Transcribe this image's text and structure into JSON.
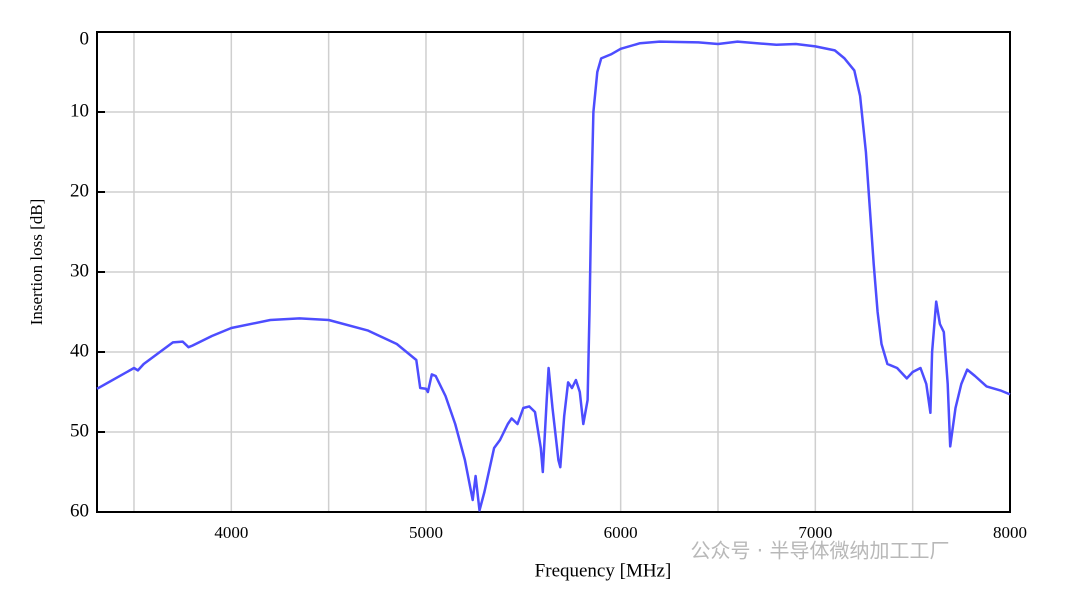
{
  "chart_data": {
    "type": "line",
    "x_label": "Frequency [MHz]",
    "y_label": "Insertion loss [dB]",
    "watermark": "公众号 · 半导体微纳加工工厂",
    "color": "#4d4dff",
    "xlim": [
      3310,
      8000
    ],
    "ylim": [
      0,
      60
    ],
    "invert_y": true,
    "xticks": [
      4000,
      5000,
      6000,
      7000,
      8000
    ],
    "x_minor_grid": [
      3500,
      4500,
      5500,
      6500,
      7500
    ],
    "yticks": [
      0,
      10,
      20,
      30,
      40,
      50,
      60
    ],
    "grid": true,
    "x": [
      3310,
      3500,
      3520,
      3550,
      3700,
      3750,
      3780,
      3800,
      3900,
      4000,
      4200,
      4350,
      4500,
      4700,
      4850,
      4950,
      4970,
      5000,
      5010,
      5030,
      5050,
      5100,
      5150,
      5200,
      5240,
      5255,
      5275,
      5300,
      5350,
      5380,
      5420,
      5440,
      5470,
      5500,
      5530,
      5560,
      5590,
      5600,
      5620,
      5630,
      5650,
      5680,
      5690,
      5710,
      5730,
      5750,
      5770,
      5790,
      5808,
      5830,
      5840,
      5850,
      5860,
      5880,
      5900,
      5950,
      6000,
      6100,
      6200,
      6400,
      6500,
      6600,
      6800,
      6900,
      7000,
      7100,
      7150,
      7200,
      7230,
      7260,
      7280,
      7300,
      7320,
      7340,
      7370,
      7420,
      7470,
      7500,
      7540,
      7570,
      7591,
      7600,
      7621,
      7640,
      7660,
      7680,
      7693,
      7720,
      7750,
      7780,
      7820,
      7880,
      7950,
      8000
    ],
    "values": [
      44.6,
      42.0,
      42.3,
      41.5,
      38.8,
      38.7,
      39.4,
      39.2,
      38.0,
      37.0,
      36.0,
      35.8,
      36.0,
      37.3,
      39.0,
      41.0,
      44.5,
      44.6,
      45.0,
      42.8,
      43.0,
      45.5,
      49.0,
      53.5,
      58.5,
      55.5,
      59.8,
      57.5,
      52.0,
      51.0,
      49.0,
      48.3,
      49.0,
      47.0,
      46.8,
      47.5,
      52.0,
      55.0,
      46.0,
      42.0,
      47.0,
      53.5,
      54.4,
      48.0,
      43.8,
      44.5,
      43.5,
      45.0,
      49.0,
      46.0,
      35.0,
      20.0,
      10.0,
      5.0,
      3.3,
      2.8,
      2.1,
      1.4,
      1.2,
      1.3,
      1.5,
      1.2,
      1.6,
      1.5,
      1.8,
      2.3,
      3.3,
      4.8,
      8.0,
      15.0,
      22.0,
      29.0,
      35.0,
      39.0,
      41.5,
      42.0,
      43.3,
      42.5,
      42.0,
      44.0,
      47.6,
      40.0,
      33.7,
      36.5,
      37.5,
      44.0,
      51.8,
      47.0,
      44.0,
      42.2,
      43.0,
      44.3,
      44.8,
      45.3
    ]
  }
}
